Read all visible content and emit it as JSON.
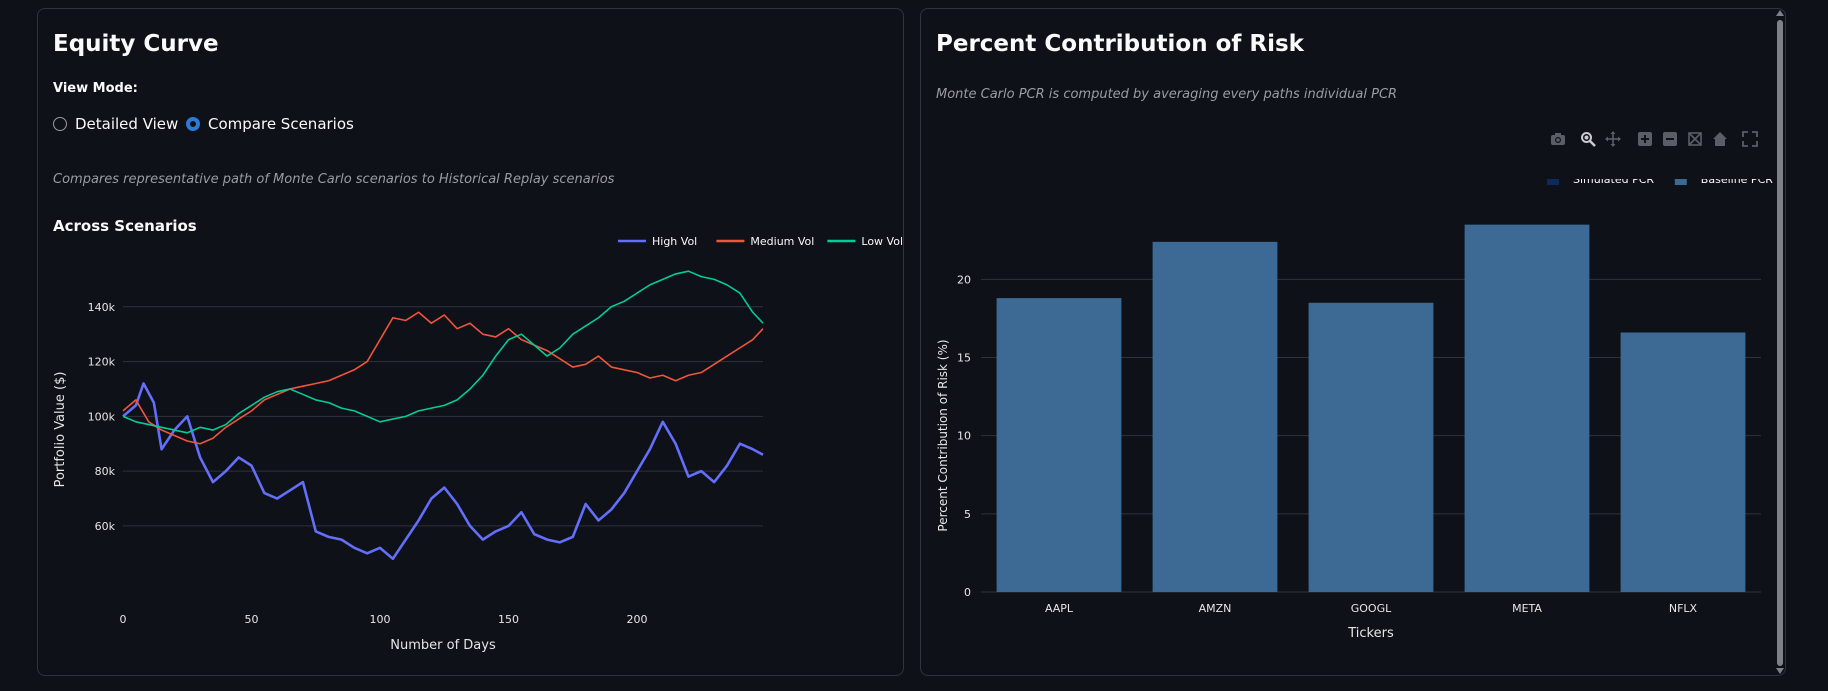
{
  "left": {
    "title": "Equity Curve",
    "view_mode_label": "View Mode:",
    "radio_options": [
      {
        "label": "Detailed View",
        "checked": false
      },
      {
        "label": "Compare Scenarios",
        "checked": true
      }
    ],
    "caption": "Compares representative path of Monte Carlo scenarios to Historical Replay scenarios"
  },
  "right": {
    "title": "Percent Contribution of Risk",
    "caption": "Monte Carlo PCR is computed by averaging every paths individual PCR",
    "toolbar_icons": [
      "camera-icon",
      "zoom-icon",
      "pan-icon",
      "zoom-in-icon",
      "zoom-out-icon",
      "autoscale-icon",
      "home-icon",
      "fullscreen-icon"
    ]
  },
  "chart_data": [
    {
      "type": "line",
      "title": "Across Scenarios",
      "xlabel": "Number of Days",
      "ylabel": "Portfolio Value ($)",
      "xlim": [
        0,
        249
      ],
      "ylim": [
        45000,
        160000
      ],
      "x_ticks": [
        0,
        50,
        100,
        150,
        200
      ],
      "y_ticks": [
        60000,
        80000,
        100000,
        120000,
        140000
      ],
      "y_tick_labels": [
        "60k",
        "80k",
        "100k",
        "120k",
        "140k"
      ],
      "grid": true,
      "legend_position": "top-right",
      "series": [
        {
          "name": "High Vol",
          "color": "#636efa",
          "x": [
            0,
            5,
            8,
            12,
            15,
            20,
            25,
            30,
            35,
            40,
            45,
            50,
            55,
            60,
            65,
            70,
            75,
            80,
            85,
            90,
            95,
            100,
            105,
            110,
            115,
            120,
            125,
            130,
            135,
            140,
            145,
            150,
            155,
            160,
            165,
            170,
            175,
            180,
            185,
            190,
            195,
            200,
            205,
            210,
            215,
            220,
            225,
            230,
            235,
            240,
            245,
            249
          ],
          "values": [
            100000,
            104000,
            112000,
            105000,
            88000,
            95000,
            100000,
            85000,
            76000,
            80000,
            85000,
            82000,
            72000,
            70000,
            73000,
            76000,
            58000,
            56000,
            55000,
            52000,
            50000,
            52000,
            48000,
            55000,
            62000,
            70000,
            74000,
            68000,
            60000,
            55000,
            58000,
            60000,
            65000,
            57000,
            55000,
            54000,
            56000,
            68000,
            62000,
            66000,
            72000,
            80000,
            88000,
            98000,
            90000,
            78000,
            80000,
            76000,
            82000,
            90000,
            88000,
            86000
          ]
        },
        {
          "name": "Medium Vol",
          "color": "#ef553b",
          "x": [
            0,
            5,
            10,
            15,
            20,
            25,
            30,
            35,
            40,
            45,
            50,
            55,
            60,
            65,
            70,
            75,
            80,
            85,
            90,
            95,
            100,
            105,
            110,
            115,
            120,
            125,
            130,
            135,
            140,
            145,
            150,
            155,
            160,
            165,
            170,
            175,
            180,
            185,
            190,
            195,
            200,
            205,
            210,
            215,
            220,
            225,
            230,
            235,
            240,
            245,
            249
          ],
          "values": [
            102000,
            106000,
            98000,
            95000,
            93000,
            91000,
            90000,
            92000,
            96000,
            99000,
            102000,
            106000,
            108000,
            110000,
            111000,
            112000,
            113000,
            115000,
            117000,
            120000,
            128000,
            136000,
            135000,
            138000,
            134000,
            137000,
            132000,
            134000,
            130000,
            129000,
            132000,
            128000,
            126000,
            124000,
            121000,
            118000,
            119000,
            122000,
            118000,
            117000,
            116000,
            114000,
            115000,
            113000,
            115000,
            116000,
            119000,
            122000,
            125000,
            128000,
            132000
          ]
        },
        {
          "name": "Low Vol",
          "color": "#00cc96",
          "x": [
            0,
            5,
            10,
            15,
            20,
            25,
            30,
            35,
            40,
            45,
            50,
            55,
            60,
            65,
            70,
            75,
            80,
            85,
            90,
            95,
            100,
            105,
            110,
            115,
            120,
            125,
            130,
            135,
            140,
            145,
            150,
            155,
            160,
            165,
            170,
            175,
            180,
            185,
            190,
            195,
            200,
            205,
            210,
            215,
            220,
            225,
            230,
            235,
            240,
            245,
            249
          ],
          "values": [
            100000,
            98000,
            97000,
            96000,
            95000,
            94000,
            96000,
            95000,
            97000,
            101000,
            104000,
            107000,
            109000,
            110000,
            108000,
            106000,
            105000,
            103000,
            102000,
            100000,
            98000,
            99000,
            100000,
            102000,
            103000,
            104000,
            106000,
            110000,
            115000,
            122000,
            128000,
            130000,
            126000,
            122000,
            125000,
            130000,
            133000,
            136000,
            140000,
            142000,
            145000,
            148000,
            150000,
            152000,
            153000,
            151000,
            150000,
            148000,
            145000,
            138000,
            134000
          ]
        }
      ]
    },
    {
      "type": "bar",
      "xlabel": "Tickers",
      "ylabel": "Percent Contribution of Risk (%)",
      "categories": [
        "AAPL",
        "AMZN",
        "GOOGL",
        "META",
        "NFLX"
      ],
      "ylim": [
        0,
        24.5
      ],
      "y_ticks": [
        0,
        5,
        10,
        15,
        20
      ],
      "grid": true,
      "legend_position": "top-right",
      "series": [
        {
          "name": "Simulated PCR",
          "color": "#0d2a5c",
          "values": [
            0,
            0,
            0,
            0,
            0
          ]
        },
        {
          "name": "Baseline PCR",
          "color": "#3d6a95",
          "values": [
            18.8,
            22.4,
            18.5,
            23.5,
            16.6
          ]
        }
      ]
    }
  ]
}
